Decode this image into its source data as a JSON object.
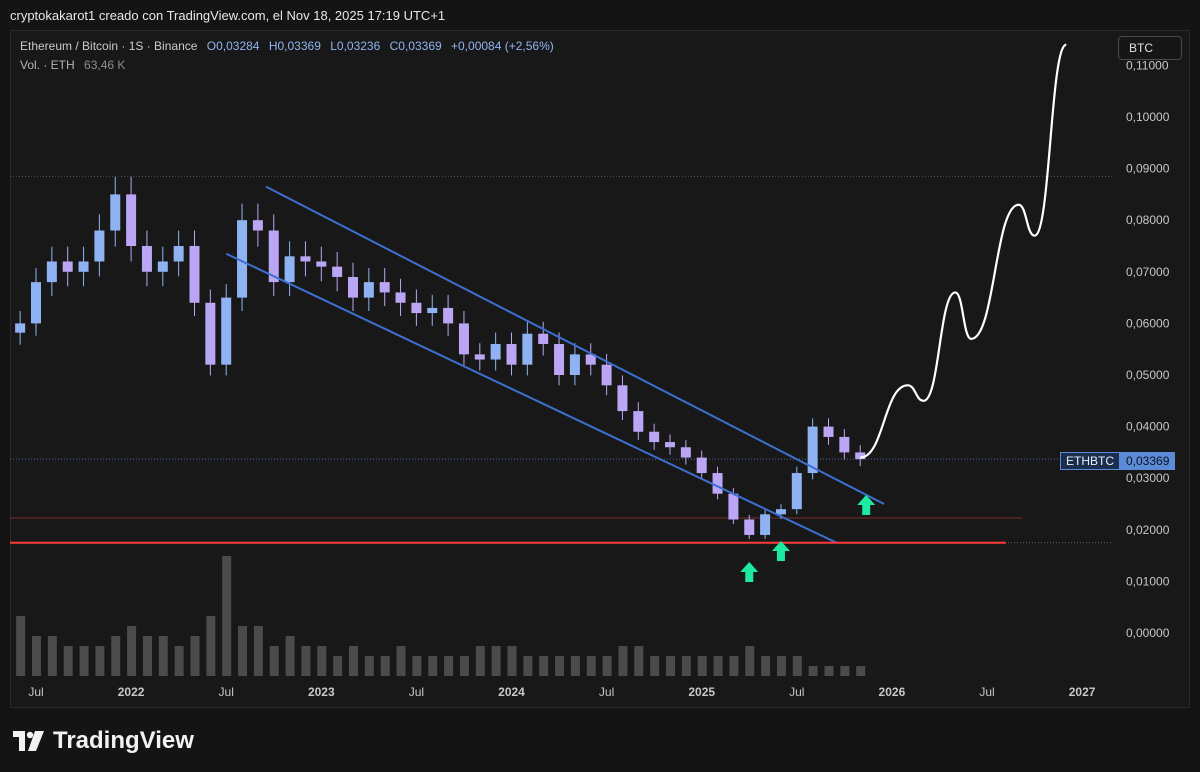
{
  "header": {
    "caption": "cryptokakarot1 creado con TradingView.com, el Nov 18, 2025 17:19 UTC+1"
  },
  "legend": {
    "title": "Ethereum / Bitcoin · 1S · Binance",
    "open": "O0,03284",
    "high": "H0,03369",
    "low": "L0,03236",
    "close": "C0,03369",
    "change": "+0,00084 (+2,56%)",
    "volume_label": "Vol. · ETH",
    "volume_value": "63,46 K"
  },
  "currency_button": "BTC",
  "price_tag": {
    "symbol": "ETHBTC",
    "value": "0,03369"
  },
  "brand": "TradingView",
  "colors": {
    "up": "#8fb3f2",
    "down": "#bba5f5",
    "channel": "#3d6fd1",
    "support": "#ff3b3b",
    "arrow": "#1de9a0",
    "projection": "#ffffff"
  },
  "chart_data": {
    "type": "candlestick",
    "y_axis": {
      "ticks": [
        "0,11000",
        "0,10000",
        "0,09000",
        "0,08000",
        "0,07000",
        "0,06000",
        "0,05000",
        "0,04000",
        "0,03000",
        "0,02000",
        "0,01000",
        "0,00000"
      ]
    },
    "x_axis": {
      "ticks": [
        "Jul",
        "2022",
        "Jul",
        "2023",
        "Jul",
        "2024",
        "Jul",
        "2025",
        "Jul",
        "2026",
        "Jul",
        "2027"
      ]
    },
    "series_close": [
      {
        "date": "2021-06",
        "close": 0.06
      },
      {
        "date": "2021-07",
        "close": 0.068
      },
      {
        "date": "2021-08",
        "close": 0.072
      },
      {
        "date": "2021-09",
        "close": 0.07
      },
      {
        "date": "2021-10",
        "close": 0.072
      },
      {
        "date": "2021-11",
        "close": 0.078
      },
      {
        "date": "2021-12",
        "close": 0.085
      },
      {
        "date": "2022-01",
        "close": 0.075
      },
      {
        "date": "2022-02",
        "close": 0.07
      },
      {
        "date": "2022-03",
        "close": 0.072
      },
      {
        "date": "2022-04",
        "close": 0.075
      },
      {
        "date": "2022-05",
        "close": 0.064
      },
      {
        "date": "2022-06",
        "close": 0.052
      },
      {
        "date": "2022-07",
        "close": 0.065
      },
      {
        "date": "2022-08",
        "close": 0.08
      },
      {
        "date": "2022-09",
        "close": 0.078
      },
      {
        "date": "2022-10",
        "close": 0.068
      },
      {
        "date": "2022-11",
        "close": 0.073
      },
      {
        "date": "2022-12",
        "close": 0.072
      },
      {
        "date": "2023-01",
        "close": 0.071
      },
      {
        "date": "2023-02",
        "close": 0.069
      },
      {
        "date": "2023-03",
        "close": 0.065
      },
      {
        "date": "2023-04",
        "close": 0.068
      },
      {
        "date": "2023-05",
        "close": 0.066
      },
      {
        "date": "2023-06",
        "close": 0.064
      },
      {
        "date": "2023-07",
        "close": 0.062
      },
      {
        "date": "2023-08",
        "close": 0.063
      },
      {
        "date": "2023-09",
        "close": 0.06
      },
      {
        "date": "2023-10",
        "close": 0.054
      },
      {
        "date": "2023-11",
        "close": 0.053
      },
      {
        "date": "2023-12",
        "close": 0.056
      },
      {
        "date": "2024-01",
        "close": 0.052
      },
      {
        "date": "2024-02",
        "close": 0.058
      },
      {
        "date": "2024-03",
        "close": 0.056
      },
      {
        "date": "2024-04",
        "close": 0.05
      },
      {
        "date": "2024-05",
        "close": 0.054
      },
      {
        "date": "2024-06",
        "close": 0.052
      },
      {
        "date": "2024-07",
        "close": 0.048
      },
      {
        "date": "2024-08",
        "close": 0.043
      },
      {
        "date": "2024-09",
        "close": 0.039
      },
      {
        "date": "2024-10",
        "close": 0.037
      },
      {
        "date": "2024-11",
        "close": 0.036
      },
      {
        "date": "2024-12",
        "close": 0.034
      },
      {
        "date": "2025-01",
        "close": 0.031
      },
      {
        "date": "2025-02",
        "close": 0.027
      },
      {
        "date": "2025-03",
        "close": 0.022
      },
      {
        "date": "2025-04",
        "close": 0.019
      },
      {
        "date": "2025-05",
        "close": 0.023
      },
      {
        "date": "2025-06",
        "close": 0.024
      },
      {
        "date": "2025-07",
        "close": 0.031
      },
      {
        "date": "2025-08",
        "close": 0.04
      },
      {
        "date": "2025-09",
        "close": 0.038
      },
      {
        "date": "2025-10",
        "close": 0.035
      },
      {
        "date": "2025-11",
        "close": 0.03369
      }
    ],
    "volume": [
      6,
      4,
      4,
      3,
      3,
      3,
      4,
      5,
      4,
      4,
      3,
      4,
      6,
      12,
      5,
      5,
      3,
      4,
      3,
      3,
      2,
      3,
      2,
      2,
      3,
      2,
      2,
      2,
      2,
      3,
      3,
      3,
      2,
      2,
      2,
      2,
      2,
      2,
      3,
      3,
      2,
      2,
      2,
      2,
      2,
      2,
      3,
      2,
      2,
      2,
      1,
      1,
      1,
      1
    ],
    "channel_upper": [
      {
        "date": "2022-09",
        "price": 0.0865
      },
      {
        "date": "2025-12",
        "price": 0.025
      }
    ],
    "channel_lower": [
      {
        "date": "2022-07",
        "price": 0.0735
      },
      {
        "date": "2025-09",
        "price": 0.0175
      }
    ],
    "support_level": 0.0175,
    "resistance_level": 0.0885,
    "current_price": 0.03369,
    "projection_path": [
      [
        0.034,
        "2025-11"
      ],
      [
        0.048,
        "2026-02"
      ],
      [
        0.045,
        "2026-03"
      ],
      [
        0.066,
        "2026-05"
      ],
      [
        0.057,
        "2026-06"
      ],
      [
        0.083,
        "2026-09"
      ],
      [
        0.077,
        "2026-10"
      ],
      [
        0.114,
        "2026-12"
      ]
    ],
    "arrows": [
      "2025-04",
      "2025-06",
      "2025-11"
    ]
  }
}
